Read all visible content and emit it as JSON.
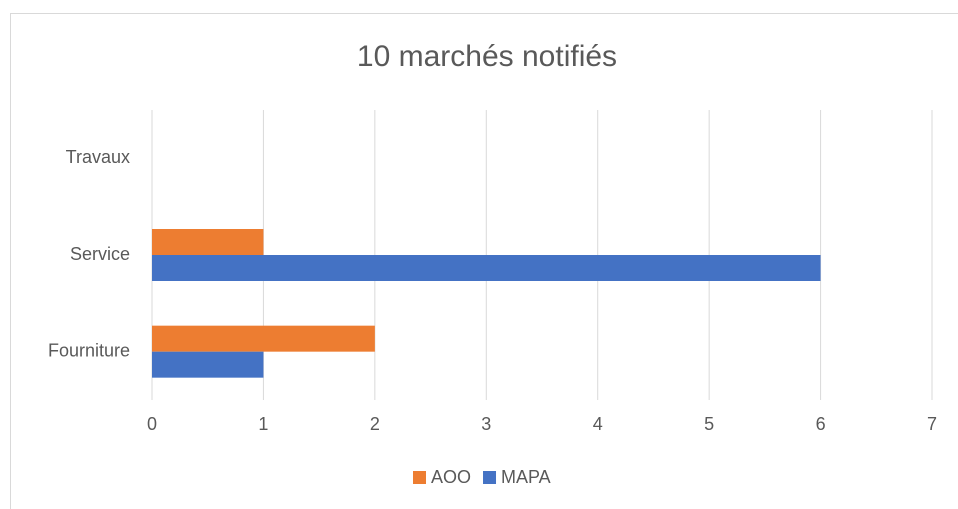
{
  "chart_data": {
    "type": "hbar",
    "title": "10 marchés notifiés",
    "categories": [
      "Fourniture",
      "Service",
      "Travaux"
    ],
    "series": [
      {
        "name": "AOO",
        "color": "#ed7d31",
        "values": [
          2,
          1,
          0
        ]
      },
      {
        "name": "MAPA",
        "color": "#4472c4",
        "values": [
          1,
          6,
          0
        ]
      }
    ],
    "xlim": [
      0,
      7
    ],
    "xticks": [
      0,
      1,
      2,
      3,
      4,
      5,
      6,
      7
    ],
    "grid": true,
    "legend": "bottom"
  }
}
